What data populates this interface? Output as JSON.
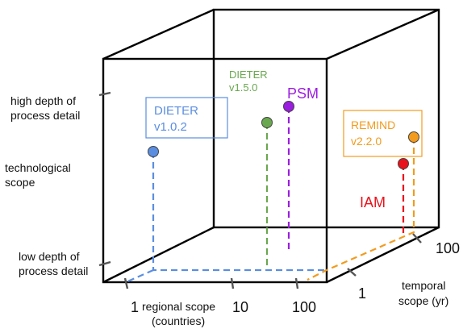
{
  "y_axis": {
    "high_label_line1": "high depth of",
    "high_label_line2": "process detail",
    "mid_label_line1": "technological",
    "mid_label_line2": "scope",
    "low_label_line1": "low depth of",
    "low_label_line2": "process detail"
  },
  "x_axis": {
    "tick_1": "1",
    "tick_10": "10",
    "tick_100": "100",
    "title_line1": "regional scope",
    "title_line2": "(countries)"
  },
  "z_axis": {
    "tick_1": "1",
    "tick_100": "100",
    "title_line1": "temporal",
    "title_line2": "scope (yr)"
  },
  "models": {
    "dieter_102": {
      "line1": "DIETER",
      "line2": "v1.0.2",
      "color": "#5b8ee0"
    },
    "dieter_150": {
      "line1": "DIETER",
      "line2": "v1.5.0",
      "color": "#6aa84f"
    },
    "psm": {
      "label": "PSM",
      "color": "#9b1de0"
    },
    "remind": {
      "line1": "REMIND",
      "line2": "v2.2.0",
      "color": "#f29b1d"
    },
    "iam": {
      "label": "IAM",
      "color": "#e8131c"
    }
  },
  "colors": {
    "frame": "#000000",
    "tick": "#555555"
  }
}
